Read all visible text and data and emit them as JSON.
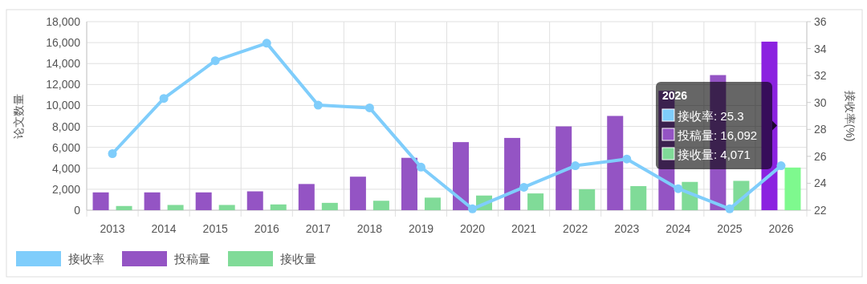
{
  "chart_data": {
    "type": "bar",
    "ylabel": "论文数量",
    "y2label": "接收率(%)",
    "categories": [
      "2013",
      "2014",
      "2015",
      "2016",
      "2017",
      "2018",
      "2019",
      "2020",
      "2021",
      "2022",
      "2023",
      "2024",
      "2025",
      "2026"
    ],
    "series": [
      {
        "name": "接收率",
        "type": "line",
        "axis": "y2",
        "color": "#7fcdfb",
        "values": [
          26.2,
          30.3,
          33.1,
          34.4,
          29.8,
          29.6,
          25.2,
          22.1,
          23.7,
          25.3,
          25.8,
          23.6,
          22.1,
          25.3
        ]
      },
      {
        "name": "投稿量",
        "color": "#9454c4",
        "colors": [
          "#9454c4",
          "#9454c4",
          "#9454c4",
          "#9454c4",
          "#9454c4",
          "#9454c4",
          "#9454c4",
          "#9454c4",
          "#9454c4",
          "#9454c4",
          "#9454c4",
          "#9454c4",
          "#9454c4",
          "#8b22e0"
        ],
        "values": [
          1700,
          1700,
          1700,
          1800,
          2500,
          3200,
          5000,
          6500,
          6900,
          8000,
          9000,
          11400,
          12900,
          16092
        ]
      },
      {
        "name": "接收量",
        "color": "#80db98",
        "colors": [
          "#80db98",
          "#80db98",
          "#80db98",
          "#80db98",
          "#80db98",
          "#80db98",
          "#80db98",
          "#80db98",
          "#80db98",
          "#80db98",
          "#80db98",
          "#80db98",
          "#80db98",
          "#7ef98e"
        ],
        "values": [
          400,
          500,
          500,
          550,
          700,
          900,
          1200,
          1400,
          1600,
          2000,
          2300,
          2700,
          2800,
          4071
        ]
      }
    ],
    "ylim": [
      0,
      18000
    ],
    "yticks": [
      {
        "value": 0,
        "label": "0"
      },
      {
        "value": 2000,
        "label": "2,000"
      },
      {
        "value": 4000,
        "label": "4,000"
      },
      {
        "value": 6000,
        "label": "6,000"
      },
      {
        "value": 8000,
        "label": "8,000"
      },
      {
        "value": 10000,
        "label": "10,000"
      },
      {
        "value": 12000,
        "label": "12,000"
      },
      {
        "value": 14000,
        "label": "14,000"
      },
      {
        "value": 16000,
        "label": "16,000"
      },
      {
        "value": 18000,
        "label": "18,000"
      }
    ],
    "y2lim": [
      22,
      36
    ],
    "y2ticks": [
      22,
      24,
      26,
      28,
      30,
      32,
      34,
      36
    ],
    "marker": "circle",
    "grid": true,
    "legend": "bottom left",
    "annotations": [
      "2026",
      "接收率: 25.3",
      "投稿量: 16,092",
      "接收量: 4,071"
    ]
  }
}
